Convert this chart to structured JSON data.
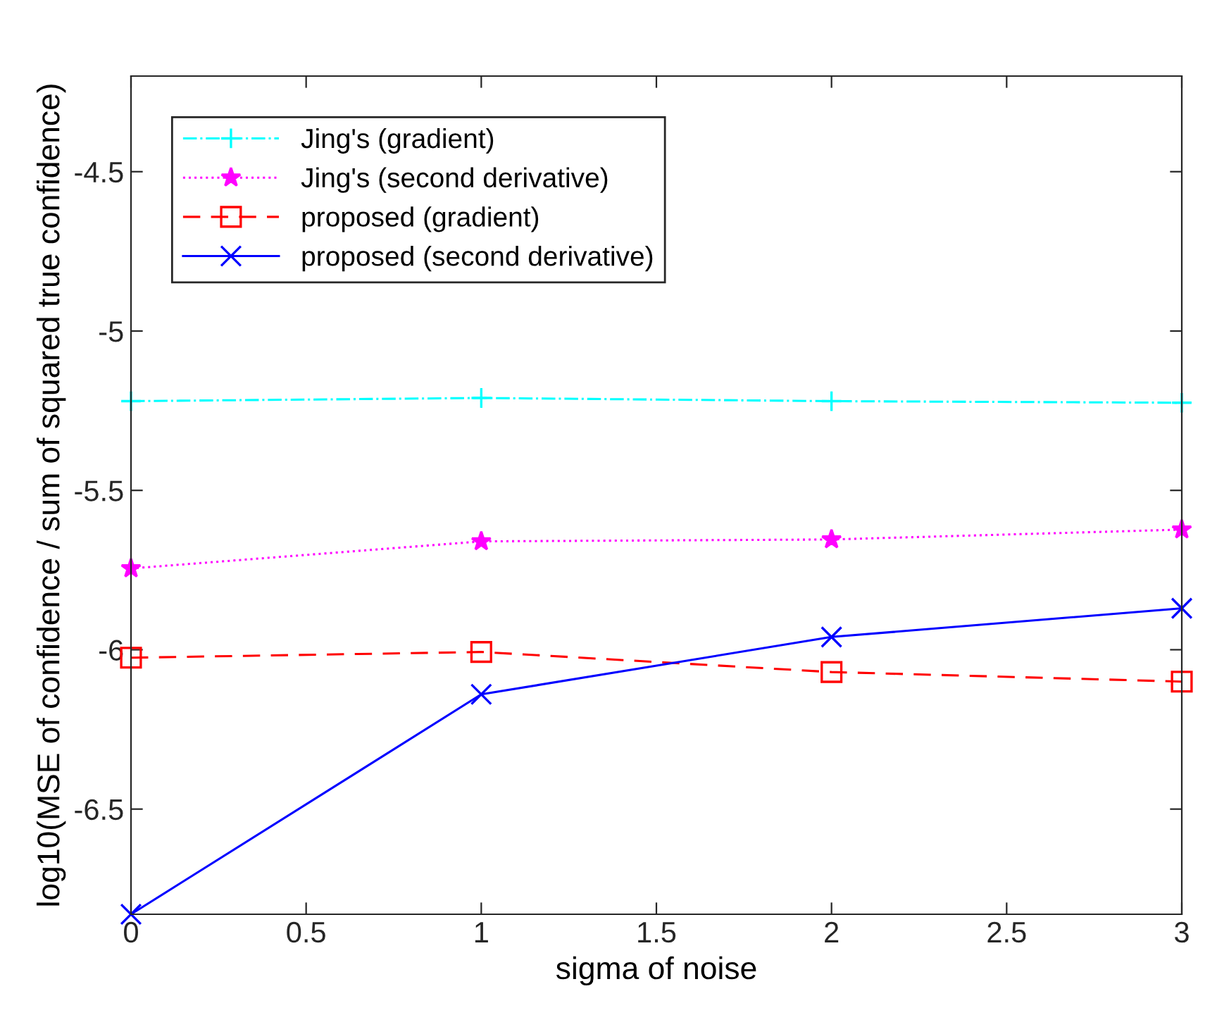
{
  "chart_data": {
    "type": "line",
    "xlabel": "sigma of noise",
    "ylabel": "log10(MSE of confidence / sum of squared true confidence)",
    "x": [
      0,
      1,
      2,
      3
    ],
    "series": [
      {
        "name": "Jing's (gradient)",
        "color": "#00ffff",
        "values": [
          -5.22,
          -5.21,
          -5.22,
          -5.225
        ],
        "marker": "plus",
        "line_style": "dashdot"
      },
      {
        "name": "Jing's (second derivative)",
        "color": "#ff00ff",
        "values": [
          -5.745,
          -5.66,
          -5.654,
          -5.623
        ],
        "marker": "star",
        "line_style": "dotted"
      },
      {
        "name": "proposed (gradient)",
        "color": "#ff0000",
        "values": [
          -6.025,
          -6.007,
          -6.07,
          -6.1
        ],
        "marker": "square",
        "line_style": "dashed"
      },
      {
        "name": "proposed (second derivative)",
        "color": "#0000ff",
        "values": [
          -6.83,
          -6.14,
          -5.96,
          -5.87
        ],
        "marker": "cross",
        "line_style": "solid"
      }
    ],
    "xlim": [
      0,
      3
    ],
    "ylim": [
      -6.83,
      -4.2
    ],
    "xticks": [
      0,
      0.5,
      1,
      1.5,
      2,
      2.5,
      3
    ],
    "yticks": [
      -6.5,
      -6,
      -5.5,
      -5,
      -4.5
    ],
    "grid": false,
    "legend": "top left"
  }
}
